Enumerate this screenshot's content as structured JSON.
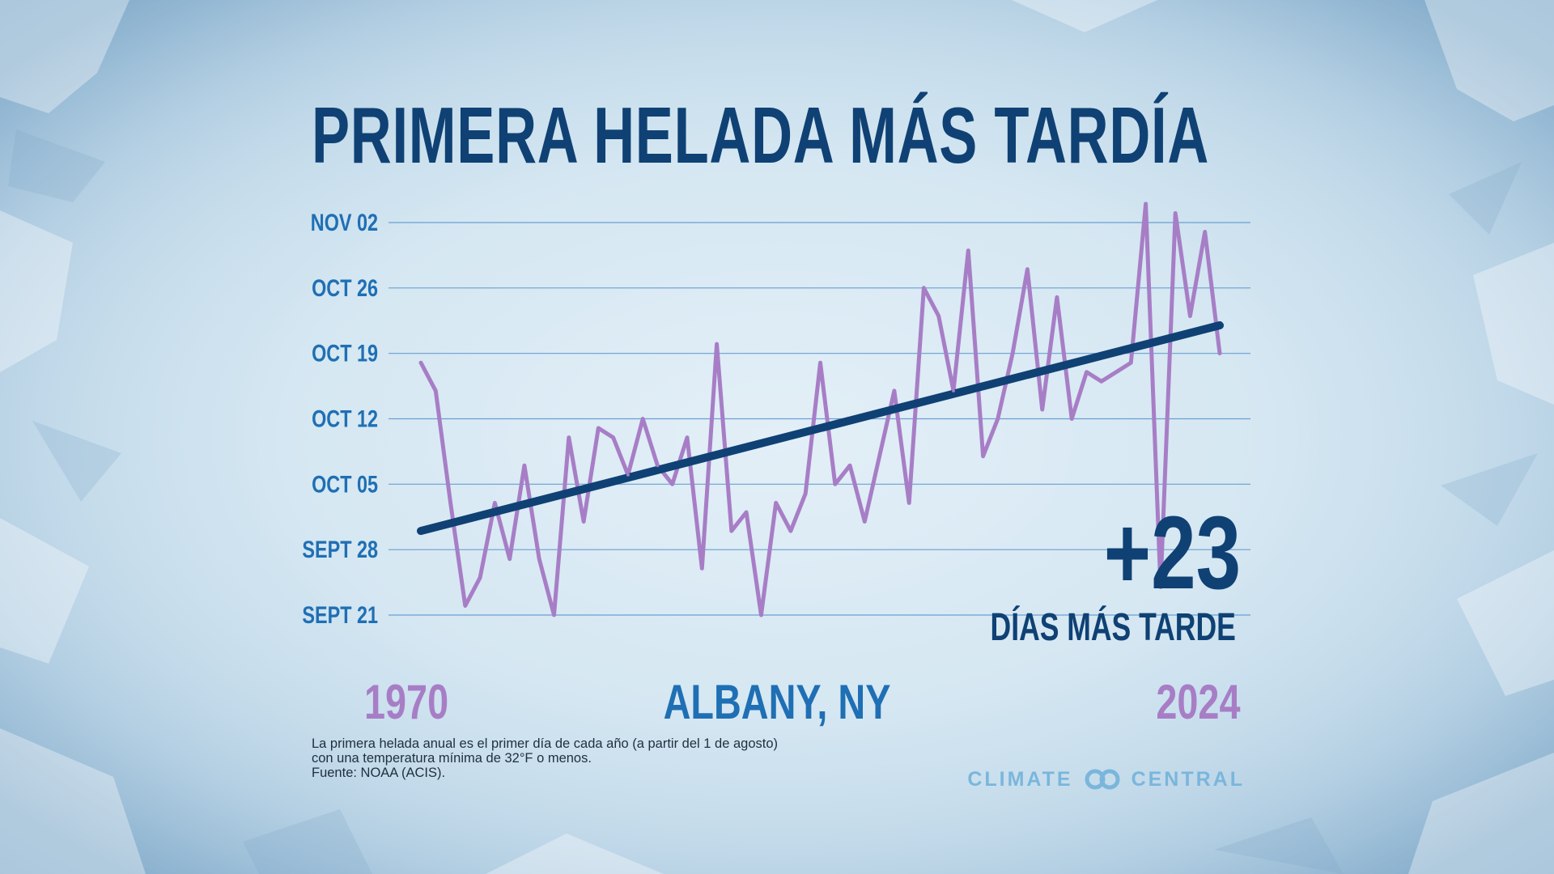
{
  "title": "PRIMERA HELADA MÁS TARDÍA",
  "stat": {
    "value": "+23",
    "label": "DÍAS MÁS TARDE"
  },
  "years": {
    "start": "1970",
    "end": "2024"
  },
  "location": "ALBANY, NY",
  "footnote": {
    "line1": "La primera helada anual es el primer día de cada año (a partir del 1 de agosto)",
    "line2": "con una temperatura mínima de 32°F o menos.",
    "line3": "Fuente: NOAA (ACIS)."
  },
  "logo": {
    "left": "CLIMATE",
    "right": "CENTRAL",
    "icon": "infinity-rings-icon"
  },
  "colors": {
    "series": "#a77ec6",
    "trend": "#0f4174",
    "grid": "#6a9fd2",
    "tick": "#1f6fb4"
  },
  "chart_data": {
    "type": "line",
    "x_start": 1970,
    "x_end": 2024,
    "yticks": [
      {
        "label": "NOV 02",
        "value": 93
      },
      {
        "label": "OCT 26",
        "value": 86
      },
      {
        "label": "OCT 19",
        "value": 79
      },
      {
        "label": "OCT 12",
        "value": 72
      },
      {
        "label": "OCT 05",
        "value": 65
      },
      {
        "label": "SEPT 28",
        "value": 58
      },
      {
        "label": "SEPT 21",
        "value": 51
      }
    ],
    "ylim": [
      51,
      93
    ],
    "y_units": "días desde el 1 de agosto",
    "grid": true,
    "series": [
      {
        "values": [
          78,
          75,
          63,
          52,
          55,
          63,
          57,
          67,
          57,
          51,
          70,
          61,
          71,
          70,
          66,
          72,
          67,
          65,
          70,
          56,
          80,
          60,
          62,
          51,
          63,
          60,
          64,
          78,
          65,
          67,
          61,
          68,
          75,
          63,
          86,
          83,
          75,
          90,
          68,
          72,
          79,
          88,
          73,
          85,
          72,
          77,
          76,
          77,
          78,
          95,
          54,
          94,
          83,
          92,
          79
        ]
      }
    ],
    "trend": {
      "start": 60,
      "end": 82
    }
  }
}
